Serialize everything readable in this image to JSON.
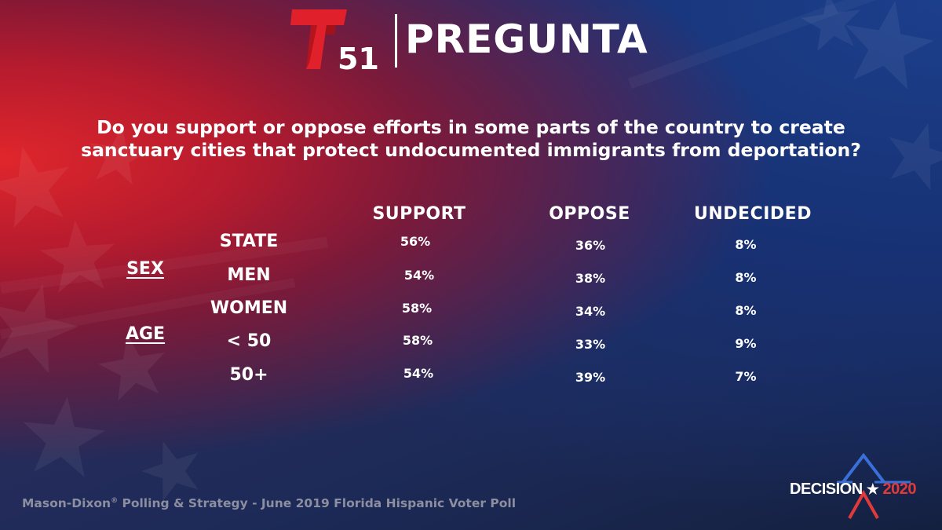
{
  "header": {
    "logo_number": "51",
    "title": "PREGUNTA"
  },
  "question": {
    "line1": "Do you support or oppose efforts in some parts of the country to create",
    "line2": "sanctuary cities that protect undocumented immigrants from deportation?"
  },
  "chart_data": {
    "type": "table",
    "columns": [
      "SUPPORT",
      "OPPOSE",
      "UNDECIDED"
    ],
    "groups": [
      {
        "label": "",
        "rows": [
          "STATE"
        ]
      },
      {
        "label": "SEX",
        "rows": [
          "MEN",
          "WOMEN"
        ]
      },
      {
        "label": "AGE",
        "rows": [
          "< 50",
          "50+"
        ]
      }
    ],
    "rows": [
      {
        "label": "STATE",
        "values": [
          "56%",
          "36%",
          "8%"
        ]
      },
      {
        "label": "MEN",
        "values": [
          "54%",
          "38%",
          "8%"
        ]
      },
      {
        "label": "WOMEN",
        "values": [
          "58%",
          "34%",
          "8%"
        ]
      },
      {
        "label": "< 50",
        "values": [
          "58%",
          "33%",
          "9%"
        ]
      },
      {
        "label": "50+",
        "values": [
          "54%",
          "39%",
          "7%"
        ]
      }
    ],
    "group_labels": {
      "sex": "SEX",
      "age": "AGE"
    }
  },
  "footer": {
    "source_part1": "Mason-Dixon",
    "source_reg": "®",
    "source_part2": " Polling & Strategy - June 2019 Florida Hispanic Voter Poll",
    "decision_word": "DECISION",
    "decision_star": "★",
    "decision_year": "2020"
  },
  "colors": {
    "logo_red": "#e0202a",
    "accent_blue": "#3a6fd8",
    "year_red": "#e23a3a",
    "source_gray": "#8b8fa0"
  }
}
